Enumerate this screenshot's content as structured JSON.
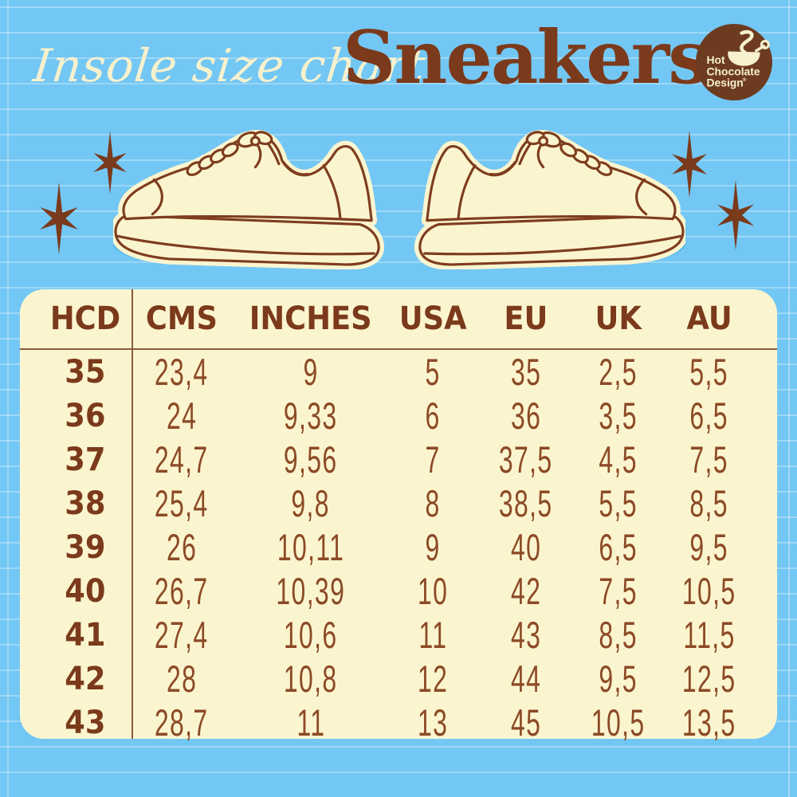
{
  "poster": {
    "title_script": "Insole size chart",
    "title_product": "Sneakers",
    "logo": {
      "line1": "Hot",
      "line2": "Chocolate",
      "line3": "Design",
      "trademark": "®"
    },
    "table": {
      "columns": [
        "HCD",
        "CMS",
        "INCHES",
        "USA",
        "EU",
        "UK",
        "AU"
      ],
      "rows": [
        [
          "35",
          "23,4",
          "9",
          "5",
          "35",
          "2,5",
          "5,5"
        ],
        [
          "36",
          "24",
          "9,33",
          "6",
          "36",
          "3,5",
          "6,5"
        ],
        [
          "37",
          "24,7",
          "9,56",
          "7",
          "37,5",
          "4,5",
          "7,5"
        ],
        [
          "38",
          "25,4",
          "9,8",
          "8",
          "38,5",
          "5,5",
          "8,5"
        ],
        [
          "39",
          "26",
          "10,11",
          "9",
          "40",
          "6,5",
          "9,5"
        ],
        [
          "40",
          "26,7",
          "10,39",
          "10",
          "42",
          "7,5",
          "10,5"
        ],
        [
          "41",
          "27,4",
          "10,6",
          "11",
          "43",
          "8,5",
          "11,5"
        ],
        [
          "42",
          "28",
          "10,8",
          "12",
          "44",
          "9,5",
          "12,5"
        ],
        [
          "43",
          "28,7",
          "11",
          "13",
          "45",
          "10,5",
          "13,5"
        ]
      ]
    },
    "colors": {
      "background_blue": "#73C7F4",
      "ruled_line_blue": "#A6DDF9",
      "panel_cream": "#FBF5CF",
      "text_cream": "#F7F1CE",
      "brown_dark": "#7B3A1B",
      "brown_value": "#8C4A26",
      "logo_brown": "#6D3B20",
      "shoe_shadow_blue": "#57B6E9"
    },
    "icons": {
      "logo_icon": "hot-chocolate-cup-and-spoon-icon",
      "decor_icon": "starburst-icon",
      "illustration_left": "sneaker-side-view-facing-left",
      "illustration_right": "sneaker-side-view-facing-right"
    }
  }
}
